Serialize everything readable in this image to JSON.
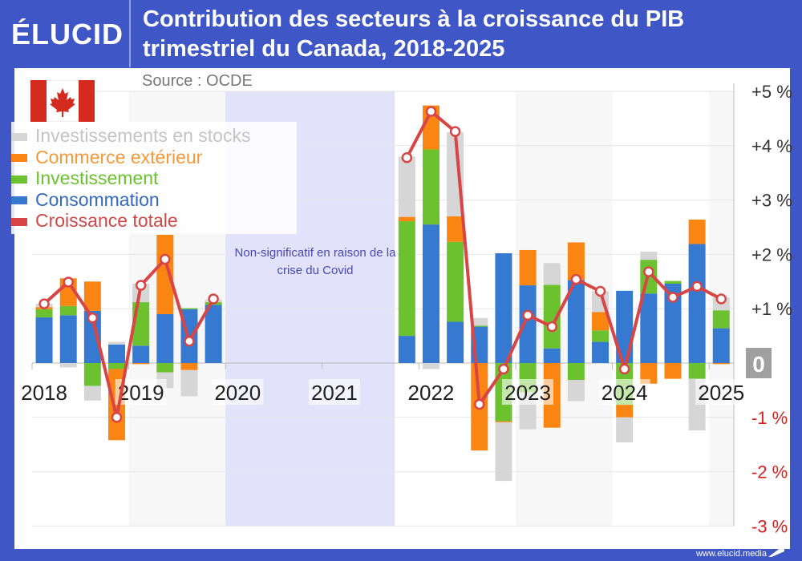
{
  "brand": "ÉLUCID",
  "title_line1": "Contribution des secteurs à la croissance du PIB",
  "title_line2": "trimestriel du Canada, 2018-2025",
  "source": "Source : OCDE",
  "footer": "www.elucid.media",
  "annotation": "Non-significatif en raison de la crise du Covid",
  "chart_data": {
    "type": "bar",
    "stacked": true,
    "title": "Contribution des secteurs à la croissance du PIB trimestriel du Canada, 2018-2025",
    "ylim": [
      -3,
      5
    ],
    "y_ticks": [
      "+5 %",
      "+4 %",
      "+3 %",
      "+2 %",
      "+1 %",
      "0",
      "-1 %",
      "-2 %",
      "-3 %"
    ],
    "y_tick_values": [
      5,
      4,
      3,
      2,
      1,
      0,
      -1,
      -2,
      -3
    ],
    "x_ticks": [
      "2018",
      "2019",
      "2020",
      "2021",
      "2022",
      "2023",
      "2024",
      "2025"
    ],
    "categories": [
      "2018T1",
      "2018T2",
      "2018T3",
      "2018T4",
      "2019T1",
      "2019T2",
      "2019T3",
      "2019T4",
      "2020T1",
      "2020T2",
      "2020T3",
      "2020T4",
      "2021T1",
      "2021T2",
      "2021T3",
      "2021T4",
      "2022T1",
      "2022T2",
      "2022T3",
      "2022T4",
      "2023T1",
      "2023T2",
      "2023T3",
      "2023T4",
      "2024T1",
      "2024T2",
      "2024T3",
      "2024T4",
      "2025T1"
    ],
    "grid": true,
    "legend_position": "top-left",
    "shaded_region": {
      "from": "2020T1",
      "to": "2021T3",
      "color": "#e2e2fb"
    },
    "series": [
      {
        "name": "Consommation",
        "color": "#3579d0",
        "values": [
          0.84,
          0.88,
          0.96,
          0.34,
          0.32,
          0.9,
          0.99,
          1.07,
          null,
          null,
          null,
          null,
          null,
          null,
          null,
          0.5,
          2.55,
          0.76,
          0.67,
          2.02,
          1.43,
          0.27,
          1.53,
          0.39,
          1.33,
          1.28,
          1.46,
          2.19,
          0.64
        ]
      },
      {
        "name": "Investissement",
        "color": "#6cc22e",
        "values": [
          0.15,
          0.17,
          -0.42,
          -0.11,
          0.8,
          -0.17,
          0.02,
          0.05,
          null,
          null,
          null,
          null,
          null,
          null,
          null,
          2.11,
          1.38,
          1.47,
          0.02,
          -1.07,
          -0.54,
          1.17,
          -0.31,
          0.21,
          -0.77,
          0.62,
          0.05,
          -0.29,
          0.33
        ]
      },
      {
        "name": "Commerce extérieur",
        "color": "#fb8512",
        "values": [
          0.04,
          0.51,
          0.54,
          -1.31,
          -0.02,
          1.46,
          -0.13,
          0,
          null,
          null,
          null,
          null,
          null,
          null,
          null,
          0.08,
          0.81,
          0.47,
          -1.61,
          -0.02,
          0.65,
          -1.19,
          0.69,
          0.34,
          -0.23,
          -0.38,
          -0.29,
          0.45,
          -0.02
        ]
      },
      {
        "name": "Investissements en stocks",
        "color": "#d6d6d6",
        "values": [
          0.06,
          -0.08,
          -0.27,
          0.05,
          0.34,
          -0.29,
          -0.48,
          0.05,
          null,
          null,
          null,
          null,
          null,
          null,
          null,
          1.11,
          -0.11,
          1.55,
          0.14,
          -1.08,
          -0.68,
          0.4,
          -0.39,
          0.38,
          -0.46,
          0.15,
          0,
          -0.95,
          0.24
        ]
      }
    ],
    "line": {
      "name": "Croissance totale",
      "color": "#d94545",
      "values": [
        1.09,
        1.49,
        0.83,
        -1.0,
        1.43,
        1.91,
        0.4,
        1.18,
        null,
        null,
        null,
        null,
        null,
        null,
        null,
        3.78,
        4.63,
        4.26,
        -0.76,
        -0.11,
        0.88,
        0.67,
        1.54,
        1.32,
        -0.11,
        1.68,
        1.21,
        1.41,
        1.18
      ]
    },
    "legend_order": [
      "Investissements en stocks",
      "Commerce extérieur",
      "Investissement",
      "Consommation",
      "Croissance totale"
    ],
    "negative_tick_color": "#d62020"
  }
}
